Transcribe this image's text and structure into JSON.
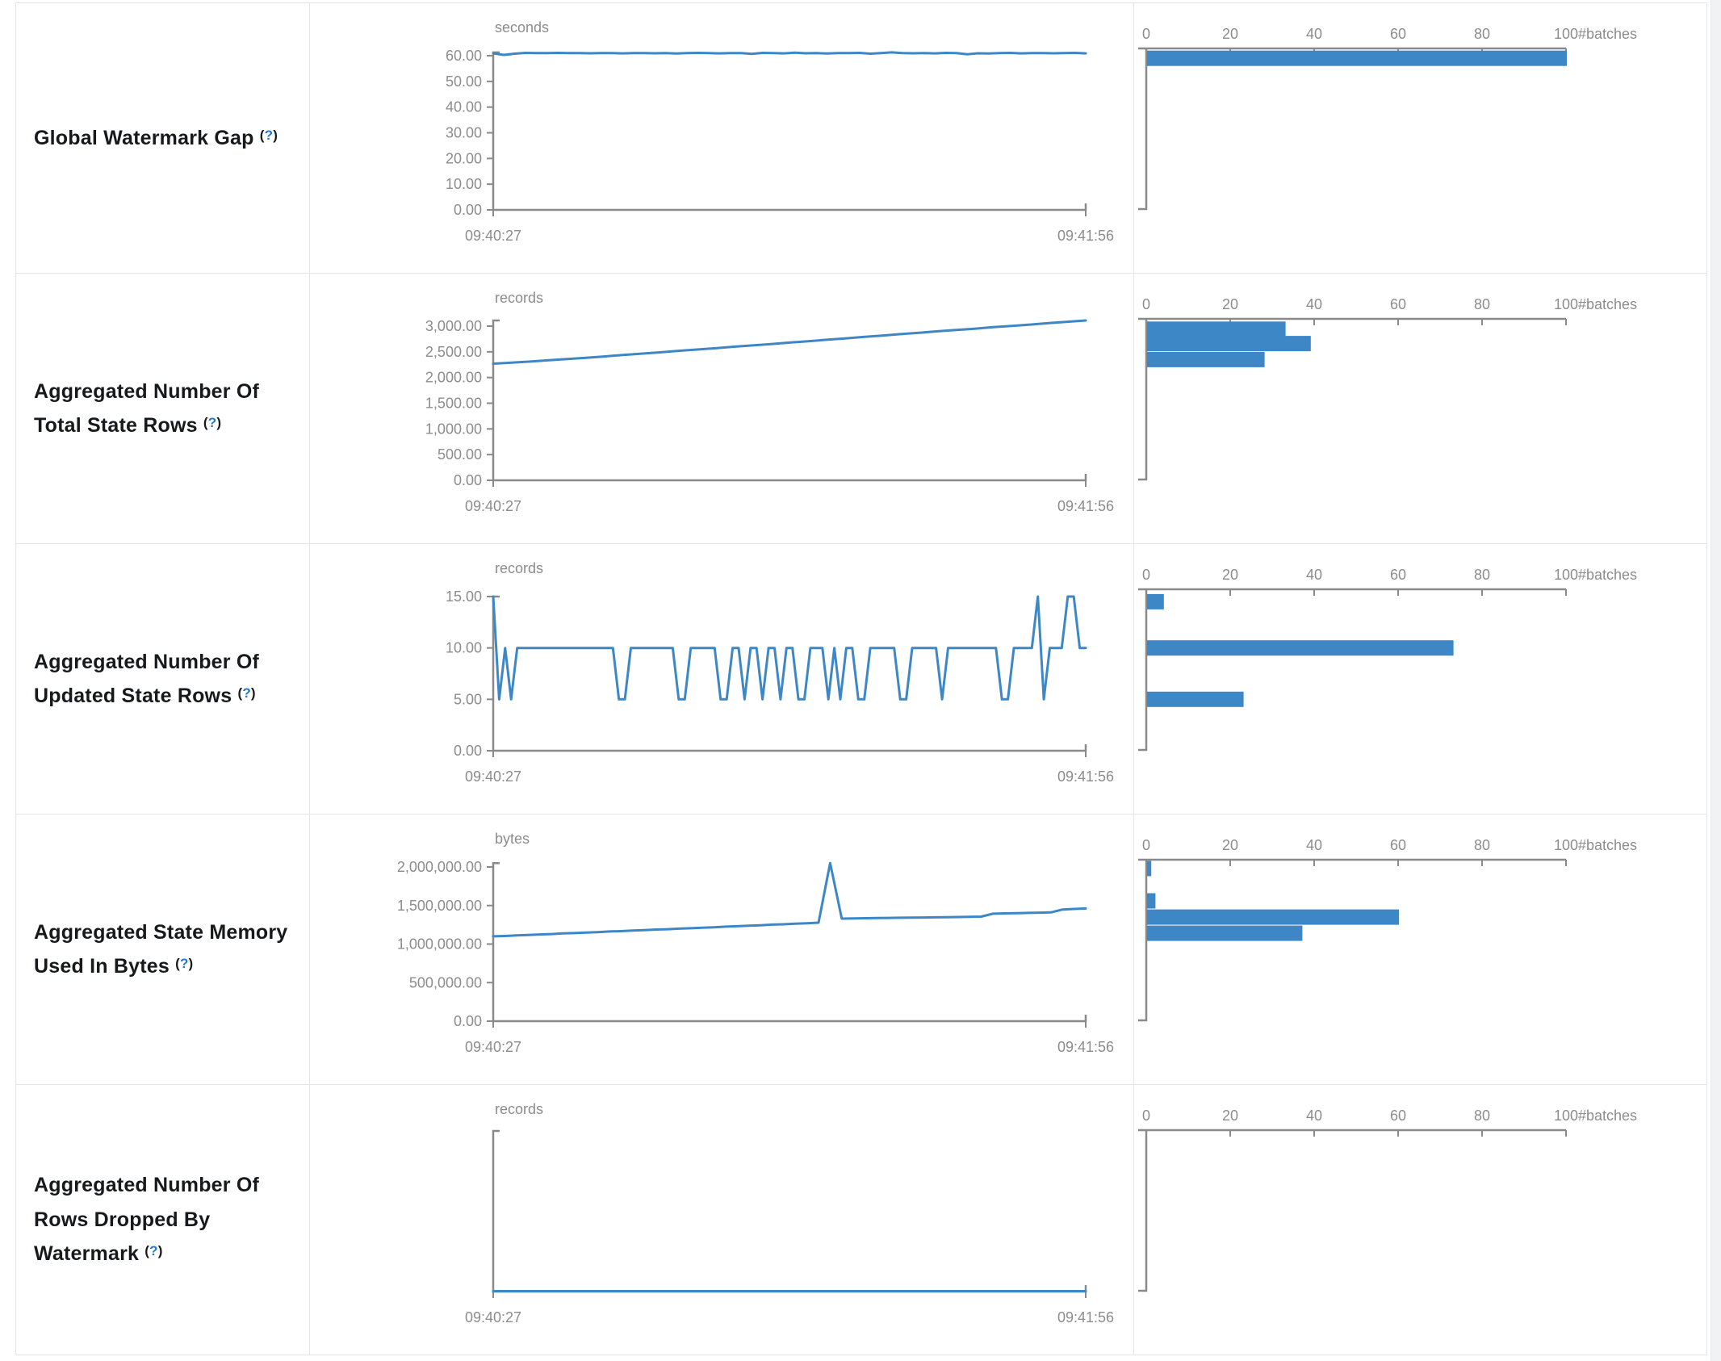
{
  "colors": {
    "series_blue": "#3d87c6",
    "axis_line": "#8a8a8a",
    "axis_text": "#8c8c8c",
    "label_text": "#17191d",
    "help_blue": "#2777cc",
    "border": "#e3e5e8"
  },
  "help": {
    "open": "(",
    "q": "?",
    "close": ")"
  },
  "histogram_axis": {
    "tick_labels": [
      "0",
      "20",
      "40",
      "60",
      "80",
      "100"
    ],
    "tick_values": [
      0,
      20,
      40,
      60,
      80,
      100
    ],
    "label": "#batches",
    "max": 100
  },
  "total_batches": 100,
  "chart_data": [
    {
      "type": "line",
      "label": "Global Watermark Gap",
      "timeline": {
        "unit": "seconds",
        "x_start_label": "09:40:27",
        "x_end_label": "09:41:56",
        "y_tick_labels": [
          "60.00",
          "50.00",
          "40.00",
          "30.00",
          "20.00",
          "10.00",
          "0.00"
        ],
        "y_tick_values": [
          60,
          50,
          40,
          30,
          20,
          10,
          0
        ],
        "values": [
          60.9,
          60.3,
          60.8,
          61.1,
          61.0,
          61.0,
          61.1,
          61.05,
          61.0,
          60.95,
          61.0,
          61.05,
          60.9,
          61.0,
          61.0,
          60.95,
          61.0,
          60.85,
          61.0,
          61.1,
          61.0,
          60.9,
          61.0,
          61.05,
          60.7,
          61.1,
          61.05,
          60.9,
          61.15,
          60.95,
          61.0,
          60.85,
          61.0,
          61.05,
          61.1,
          60.8,
          61.0,
          61.3,
          61.05,
          60.95,
          61.0,
          60.9,
          61.1,
          61.0,
          60.55,
          60.95,
          60.85,
          61.0,
          61.1,
          60.9,
          61.0,
          61.05,
          60.95,
          61.0,
          61.1,
          60.9
        ]
      },
      "histogram": {
        "type": "bar",
        "orientation": "horizontal",
        "bars": [
          {
            "value": 59,
            "count": 100
          }
        ]
      }
    },
    {
      "type": "line",
      "label": "Aggregated Number Of Total State Rows",
      "timeline": {
        "unit": "records",
        "x_start_label": "09:40:27",
        "x_end_label": "09:41:56",
        "y_tick_labels": [
          "3,000.00",
          "2,500.00",
          "2,000.00",
          "1,500.00",
          "1,000.00",
          "500.00",
          "0.00"
        ],
        "y_tick_values": [
          3000,
          2500,
          2000,
          1500,
          1000,
          500,
          0
        ],
        "values": [
          2270,
          2290,
          2310,
          2335,
          2360,
          2385,
          2410,
          2440,
          2465,
          2490,
          2520,
          2545,
          2570,
          2600,
          2625,
          2650,
          2680,
          2705,
          2735,
          2760,
          2790,
          2815,
          2845,
          2870,
          2900,
          2925,
          2950,
          2980,
          3005,
          3030,
          3060,
          3085,
          3110
        ]
      },
      "histogram": {
        "type": "bar",
        "orientation": "horizontal",
        "bars": [
          {
            "value": 2940,
            "count": 33
          },
          {
            "value": 2660,
            "count": 39
          },
          {
            "value": 2350,
            "count": 28
          }
        ]
      }
    },
    {
      "type": "line",
      "label": "Aggregated Number Of Updated State Rows",
      "timeline": {
        "unit": "records",
        "x_start_label": "09:40:27",
        "x_end_label": "09:41:56",
        "y_tick_labels": [
          "15.00",
          "10.00",
          "5.00",
          "0.00"
        ],
        "y_tick_values": [
          15,
          10,
          5,
          0
        ],
        "values": [
          15,
          5,
          10,
          5,
          10,
          10,
          10,
          10,
          10,
          10,
          10,
          10,
          10,
          10,
          10,
          10,
          10,
          10,
          10,
          10,
          10,
          5,
          5,
          10,
          10,
          10,
          10,
          10,
          10,
          10,
          10,
          5,
          5,
          10,
          10,
          10,
          10,
          10,
          5,
          5,
          10,
          10,
          5,
          10,
          10,
          5,
          10,
          10,
          5,
          10,
          10,
          5,
          5,
          10,
          10,
          10,
          5,
          10,
          5,
          10,
          10,
          5,
          5,
          10,
          10,
          10,
          10,
          10,
          5,
          5,
          10,
          10,
          10,
          10,
          10,
          5,
          10,
          10,
          10,
          10,
          10,
          10,
          10,
          10,
          10,
          5,
          5,
          10,
          10,
          10,
          10,
          15,
          5,
          10,
          10,
          10,
          15,
          15,
          10,
          10
        ]
      },
      "histogram": {
        "type": "bar",
        "orientation": "horizontal",
        "bars": [
          {
            "value": 14.5,
            "count": 4
          },
          {
            "value": 10,
            "count": 73
          },
          {
            "value": 5,
            "count": 23
          }
        ]
      }
    },
    {
      "type": "line",
      "label": "Aggregated State Memory Used In Bytes",
      "timeline": {
        "unit": "bytes",
        "x_start_label": "09:40:27",
        "x_end_label": "09:41:56",
        "y_tick_labels": [
          "2,000,000.00",
          "1,500,000.00",
          "1,000,000.00",
          "500,000.00",
          "0.00"
        ],
        "y_tick_values": [
          2000000,
          1500000,
          1000000,
          500000,
          0
        ],
        "values": [
          1100000,
          1105000,
          1112000,
          1118000,
          1125000,
          1130000,
          1138000,
          1142000,
          1150000,
          1155000,
          1163000,
          1168000,
          1175000,
          1180000,
          1188000,
          1193000,
          1200000,
          1205000,
          1213000,
          1218000,
          1226000,
          1231000,
          1239000,
          1244000,
          1252000,
          1257000,
          1264000,
          1270000,
          1278000,
          2050000,
          1330000,
          1333000,
          1335000,
          1337000,
          1339000,
          1341000,
          1343000,
          1345000,
          1347000,
          1349000,
          1351000,
          1353000,
          1356000,
          1394000,
          1398000,
          1401000,
          1404000,
          1407000,
          1410000,
          1448000,
          1455000,
          1462000
        ]
      },
      "histogram": {
        "type": "bar",
        "orientation": "horizontal",
        "bars": [
          {
            "value": 1980000,
            "count": 1
          },
          {
            "value": 1560000,
            "count": 2
          },
          {
            "value": 1350000,
            "count": 60
          },
          {
            "value": 1140000,
            "count": 37
          }
        ]
      }
    },
    {
      "type": "line",
      "label": "Aggregated Number Of Rows Dropped By Watermark",
      "timeline": {
        "unit": "records",
        "x_start_label": "09:40:27",
        "x_end_label": "09:41:56",
        "y_tick_labels": [],
        "y_tick_values": [],
        "values": [
          0,
          0,
          0,
          0,
          0
        ]
      },
      "histogram": {
        "type": "bar",
        "orientation": "horizontal",
        "bars": []
      }
    }
  ]
}
